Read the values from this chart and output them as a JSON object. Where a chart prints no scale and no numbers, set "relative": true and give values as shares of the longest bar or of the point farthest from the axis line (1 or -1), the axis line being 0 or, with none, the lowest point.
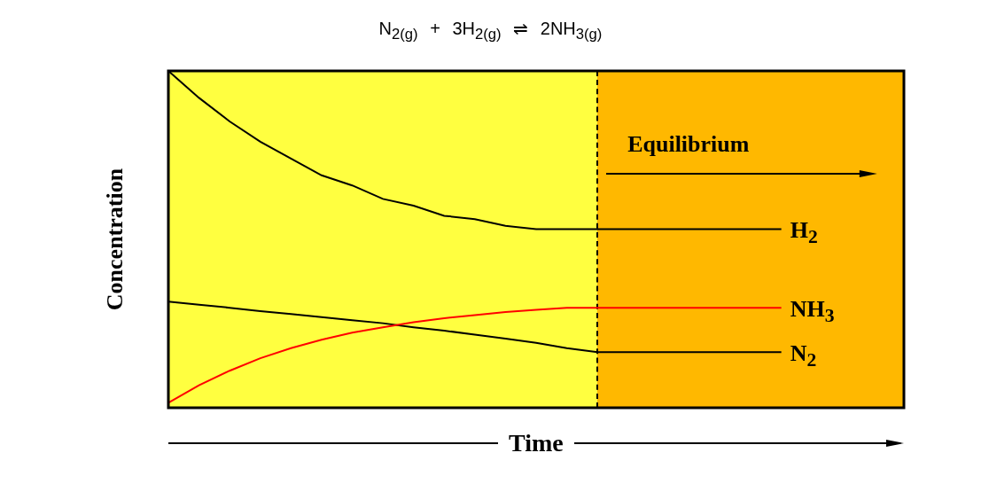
{
  "chart_data": {
    "type": "line",
    "title": "N$_{2(g)}$ + 3H$_{2(g)}$ ⇌ 2NH$_{3(g)}$",
    "xlabel": "Time",
    "ylabel": "Concentration",
    "annotations": [
      "Equilibrium"
    ],
    "relative": true,
    "tick_labels": false,
    "marker": "none",
    "categories": [
      null,
      null,
      null,
      null,
      null,
      null,
      null,
      null,
      null,
      null,
      null,
      null,
      null,
      null,
      null,
      null,
      null,
      null,
      null,
      null,
      null,
      null,
      null,
      null,
      null
    ],
    "series": [
      {
        "name": "H$_{2}$",
        "color": "#000000",
        "values": [
          1,
          0.92,
          0.85,
          0.79,
          0.74,
          0.69,
          0.66,
          0.62,
          0.6,
          0.57,
          0.56,
          0.54,
          0.53,
          0.53,
          0.53,
          0.53,
          0.53,
          0.53,
          0.53,
          0.53,
          0.53,
          null,
          null,
          null,
          null
        ]
      },
      {
        "name": "NH$_{3}$",
        "color": "#ff0000",
        "values": [
          0.015,
          0.067,
          0.11,
          0.147,
          0.177,
          0.202,
          0.223,
          0.239,
          0.254,
          0.266,
          0.275,
          0.284,
          0.291,
          0.297,
          0.297,
          0.297,
          0.297,
          0.297,
          0.297,
          0.297,
          0.297,
          null,
          null,
          null,
          null
        ]
      },
      {
        "name": "N$_{2}$",
        "color": "#000000",
        "values": [
          0.315,
          0.306,
          0.297,
          0.287,
          0.278,
          0.269,
          0.26,
          0.251,
          0.239,
          0.229,
          0.217,
          0.205,
          0.193,
          0.177,
          0.165,
          0.165,
          0.165,
          0.165,
          0.165,
          0.165,
          0.165,
          null,
          null,
          null,
          null
        ]
      }
    ]
  }
}
